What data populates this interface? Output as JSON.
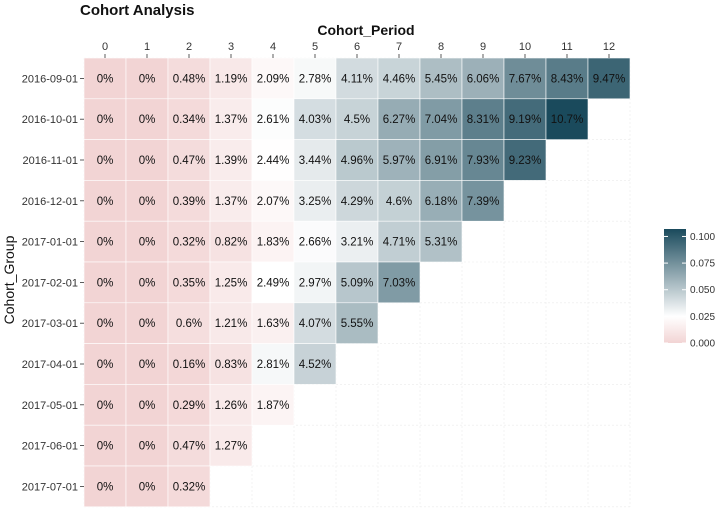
{
  "chart_data": {
    "type": "heatmap",
    "title": "Cohort Analysis",
    "xlabel": "Cohort_Period",
    "ylabel": "Cohort_Group",
    "x_categories": [
      "0",
      "1",
      "2",
      "3",
      "4",
      "5",
      "6",
      "7",
      "8",
      "9",
      "10",
      "11",
      "12"
    ],
    "y_categories": [
      "2016-09-01",
      "2016-10-01",
      "2016-11-01",
      "2016-12-01",
      "2017-01-01",
      "2017-02-01",
      "2017-03-01",
      "2017-04-01",
      "2017-05-01",
      "2017-06-01",
      "2017-07-01"
    ],
    "values": [
      [
        0,
        0,
        0.0048,
        0.0119,
        0.0209,
        0.0278,
        0.0411,
        0.0446,
        0.0545,
        0.0606,
        0.0767,
        0.0843,
        0.0947
      ],
      [
        0,
        0,
        0.0034,
        0.0137,
        0.0261,
        0.0403,
        0.045,
        0.0627,
        0.0704,
        0.0831,
        0.0919,
        0.107
      ],
      [
        0,
        0,
        0.0047,
        0.0139,
        0.0244,
        0.0344,
        0.0496,
        0.0597,
        0.0691,
        0.0793,
        0.0923
      ],
      [
        0,
        0,
        0.0039,
        0.0137,
        0.0207,
        0.0325,
        0.0429,
        0.046,
        0.0618,
        0.0739
      ],
      [
        0,
        0,
        0.0032,
        0.0082,
        0.0183,
        0.0266,
        0.0321,
        0.0471,
        0.0531
      ],
      [
        0,
        0,
        0.0035,
        0.0125,
        0.0249,
        0.0297,
        0.0509,
        0.0703
      ],
      [
        0,
        0,
        0.006,
        0.0121,
        0.0163,
        0.0407,
        0.0555
      ],
      [
        0,
        0,
        0.0016,
        0.0083,
        0.0281,
        0.0452
      ],
      [
        0,
        0,
        0.0029,
        0.0126,
        0.0187
      ],
      [
        0,
        0,
        0.0047,
        0.0127
      ],
      [
        0,
        0,
        0.0032
      ]
    ],
    "labels": [
      [
        "0%",
        "0%",
        "0.48%",
        "1.19%",
        "2.09%",
        "2.78%",
        "4.11%",
        "4.46%",
        "5.45%",
        "6.06%",
        "7.67%",
        "8.43%",
        "9.47%"
      ],
      [
        "0%",
        "0%",
        "0.34%",
        "1.37%",
        "2.61%",
        "4.03%",
        "4.5%",
        "6.27%",
        "7.04%",
        "8.31%",
        "9.19%",
        "10.7%"
      ],
      [
        "0%",
        "0%",
        "0.47%",
        "1.39%",
        "2.44%",
        "3.44%",
        "4.96%",
        "5.97%",
        "6.91%",
        "7.93%",
        "9.23%"
      ],
      [
        "0%",
        "0%",
        "0.39%",
        "1.37%",
        "2.07%",
        "3.25%",
        "4.29%",
        "4.6%",
        "6.18%",
        "7.39%"
      ],
      [
        "0%",
        "0%",
        "0.32%",
        "0.82%",
        "1.83%",
        "2.66%",
        "3.21%",
        "4.71%",
        "5.31%"
      ],
      [
        "0%",
        "0%",
        "0.35%",
        "1.25%",
        "2.49%",
        "2.97%",
        "5.09%",
        "7.03%"
      ],
      [
        "0%",
        "0%",
        "0.6%",
        "1.21%",
        "1.63%",
        "4.07%",
        "5.55%"
      ],
      [
        "0%",
        "0%",
        "0.16%",
        "0.83%",
        "2.81%",
        "4.52%"
      ],
      [
        "0%",
        "0%",
        "0.29%",
        "1.26%",
        "1.87%"
      ],
      [
        "0%",
        "0%",
        "0.47%",
        "1.27%"
      ],
      [
        "0%",
        "0%",
        "0.32%"
      ]
    ],
    "color_scale": {
      "low": "#f2d4d4",
      "mid": "#ffffff",
      "high": "#1a4a5c",
      "midpoint": 0.025,
      "range": [
        0,
        0.107
      ]
    },
    "legend": {
      "ticks": [
        0.0,
        0.025,
        0.05,
        0.075,
        0.1
      ],
      "tick_labels": [
        "0.000",
        "0.025",
        "0.050",
        "0.075",
        "0.100"
      ],
      "position": "right"
    },
    "grid": true
  }
}
